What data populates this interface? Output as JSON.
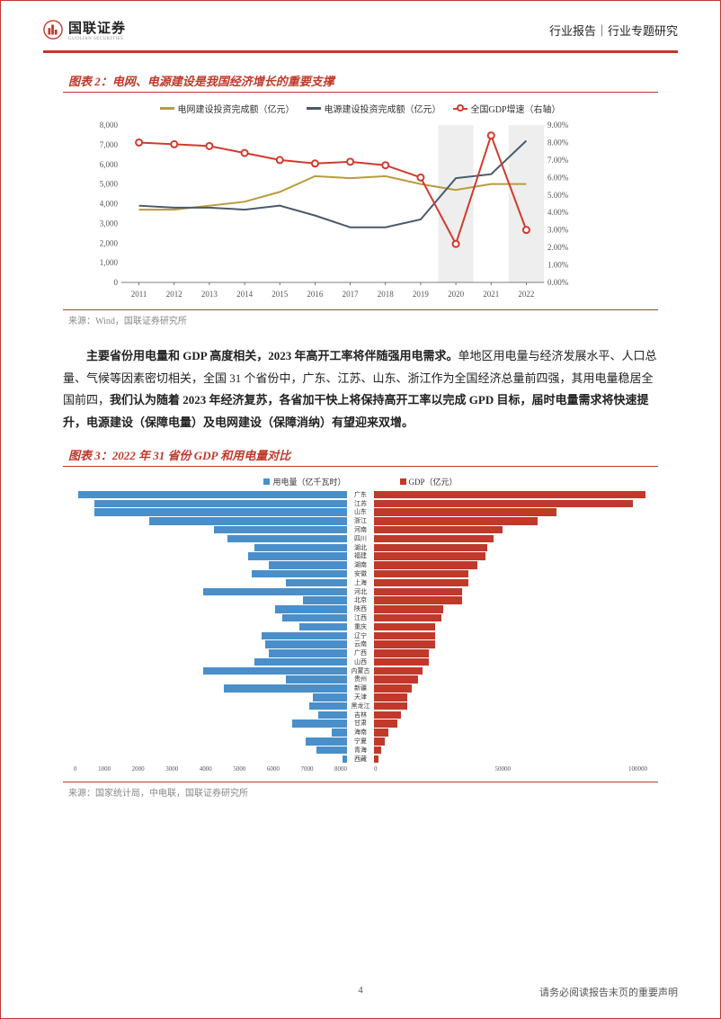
{
  "header": {
    "logo_cn": "国联证券",
    "logo_en": "GUOLIAN SECURITIES",
    "right": "行业报告｜行业专题研究"
  },
  "figure2": {
    "title": "图表 2：电网、电源建设是我国经济增长的重要支撑",
    "source": "来源：Wind，国联证券研究所",
    "legend": {
      "grid": "电网建设投资完成额（亿元）",
      "power": "电源建设投资完成额（亿元）",
      "gdp": "全国GDP增速（右轴）"
    },
    "colors": {
      "grid": "#b89b3f",
      "power": "#4a5a6a",
      "gdp": "#d33a2c",
      "axis": "#555",
      "gridline": "#dcdcdc",
      "band": "#eeeeee"
    },
    "years": [
      "2011",
      "2012",
      "2013",
      "2014",
      "2015",
      "2016",
      "2017",
      "2018",
      "2019",
      "2020",
      "2021",
      "2022"
    ],
    "left_ticks": [
      0,
      1000,
      2000,
      3000,
      4000,
      5000,
      6000,
      7000,
      8000
    ],
    "left_labels": [
      "0",
      "1,000",
      "2,000",
      "3,000",
      "4,000",
      "5,000",
      "6,000",
      "7,000",
      "8,000"
    ],
    "right_ticks": [
      0,
      1,
      2,
      3,
      4,
      5,
      6,
      7,
      8,
      9
    ],
    "right_labels": [
      "0.00%",
      "1.00%",
      "2.00%",
      "3.00%",
      "4.00%",
      "5.00%",
      "6.00%",
      "7.00%",
      "8.00%",
      "9.00%"
    ],
    "left_max": 8000,
    "right_max": 9,
    "series_grid": [
      3700,
      3700,
      3900,
      4100,
      4600,
      5400,
      5300,
      5400,
      5000,
      4700,
      5000,
      5000
    ],
    "series_power": [
      3900,
      3800,
      3800,
      3700,
      3900,
      3400,
      2800,
      2800,
      3200,
      5300,
      5500,
      7200
    ],
    "series_gdp": [
      8.0,
      7.9,
      7.8,
      7.4,
      7.0,
      6.8,
      6.9,
      6.7,
      6.0,
      2.2,
      8.4,
      3.0
    ],
    "bands": [
      [
        9,
        10
      ],
      [
        11,
        12
      ]
    ]
  },
  "body_text_plain": "主要省份用电量和 GDP 高度相关，2023 年高开工率将伴随强用电需求。单地区用电量与经济发展水平、人口总量、气候等因素密切相关，全国 31 个省份中，广东、江苏、山东、浙江作为全国经济总量前四强，其用电量稳居全国前四，我们认为随着 2023 年经济复苏，各省加干快上将保持高开工率以完成 GPD 目标，届时电量需求将快速提升，电源建设（保障电量）及电网建设（保障消纳）有望迎来双增。",
  "figure3": {
    "title": "图表 3：2022 年 31 省份 GDP 和用电量对比",
    "source": "来源：国家统计局，中电联，国联证券研究所",
    "legend_left": "用电量（亿千瓦时）",
    "legend_right": "GDP（亿元）",
    "color_left": "#4a8fc9",
    "color_right": "#c0392b",
    "provinces": [
      "广东",
      "江苏",
      "山东",
      "浙江",
      "河南",
      "四川",
      "湖北",
      "福建",
      "湖南",
      "安徽",
      "上海",
      "河北",
      "北京",
      "陕西",
      "江西",
      "重庆",
      "辽宁",
      "云南",
      "广西",
      "山西",
      "内蒙古",
      "贵州",
      "新疆",
      "天津",
      "黑龙江",
      "吉林",
      "甘肃",
      "海南",
      "宁夏",
      "青海",
      "西藏"
    ],
    "elec": [
      7870,
      7400,
      7400,
      5800,
      3900,
      3500,
      2700,
      2900,
      2300,
      2800,
      1800,
      4200,
      1300,
      2100,
      1900,
      1400,
      2500,
      2400,
      2300,
      2700,
      4200,
      1800,
      3600,
      1000,
      1100,
      850,
      1600,
      450,
      1200,
      900,
      120
    ],
    "gdp": [
      129000,
      123000,
      87000,
      78000,
      61000,
      57000,
      54000,
      53000,
      49000,
      45000,
      45000,
      42000,
      42000,
      33000,
      32000,
      29000,
      29000,
      29000,
      26000,
      26000,
      23000,
      21000,
      18000,
      16000,
      16000,
      13000,
      11000,
      7000,
      5000,
      3600,
      2100
    ],
    "left_max": 8000,
    "right_max": 130000,
    "left_ticks": [
      "8000",
      "7000",
      "6000",
      "5000",
      "4000",
      "3000",
      "2000",
      "1000",
      "0"
    ],
    "right_ticks": [
      "0",
      "50000",
      "100000"
    ]
  },
  "footer": {
    "page": "4",
    "disclaimer": "请务必阅读报告末页的重要声明"
  }
}
